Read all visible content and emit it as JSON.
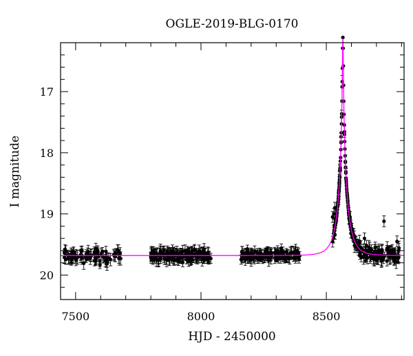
{
  "chart_data": {
    "type": "scatter",
    "title": "OGLE-2019-BLG-0170",
    "xlabel": "HJD - 2450000",
    "ylabel": "I magnitude",
    "xlim": [
      7440,
      8810
    ],
    "ylim": [
      20.4,
      16.2
    ],
    "y_inverted": true,
    "x_ticks": [
      7500,
      8000,
      8500
    ],
    "y_ticks": [
      17,
      18,
      19,
      20
    ],
    "x_minor_step": 100,
    "y_minor_step": 0.2,
    "grid": false,
    "legend": "none",
    "series": [
      {
        "kind": "data",
        "marker": "filled-circle",
        "error_bars": true,
        "color": "#000000",
        "seasons": [
          {
            "x_start": 7452,
            "x_end": 7680,
            "baseline": 19.7,
            "scatter": 0.12,
            "err": 0.09,
            "count": 85
          },
          {
            "x_start": 7800,
            "x_end": 8040,
            "baseline": 19.72,
            "scatter": 0.1,
            "err": 0.09,
            "count": 150
          },
          {
            "x_start": 8160,
            "x_end": 8395,
            "baseline": 19.72,
            "scatter": 0.09,
            "err": 0.08,
            "count": 140
          },
          {
            "x_start": 8520,
            "x_end": 8790,
            "baseline": 19.7,
            "scatter": 0.12,
            "err": 0.09,
            "count": 150
          }
        ],
        "outliers": [
          {
            "x": 8525,
            "y": 19.05
          },
          {
            "x": 8530,
            "y": 19.0
          },
          {
            "x": 8534,
            "y": 18.9
          },
          {
            "x": 8730,
            "y": 19.12
          },
          {
            "x": 8782,
            "y": 19.45
          },
          {
            "x": 8695,
            "y": 19.55
          },
          {
            "x": 8652,
            "y": 19.4
          }
        ]
      },
      {
        "kind": "model",
        "color": "#ff00ff",
        "t0": 8566,
        "u0": 0.038,
        "tE": 40,
        "baseline_mag": 19.68,
        "blend_fraction": 1.0
      }
    ]
  }
}
